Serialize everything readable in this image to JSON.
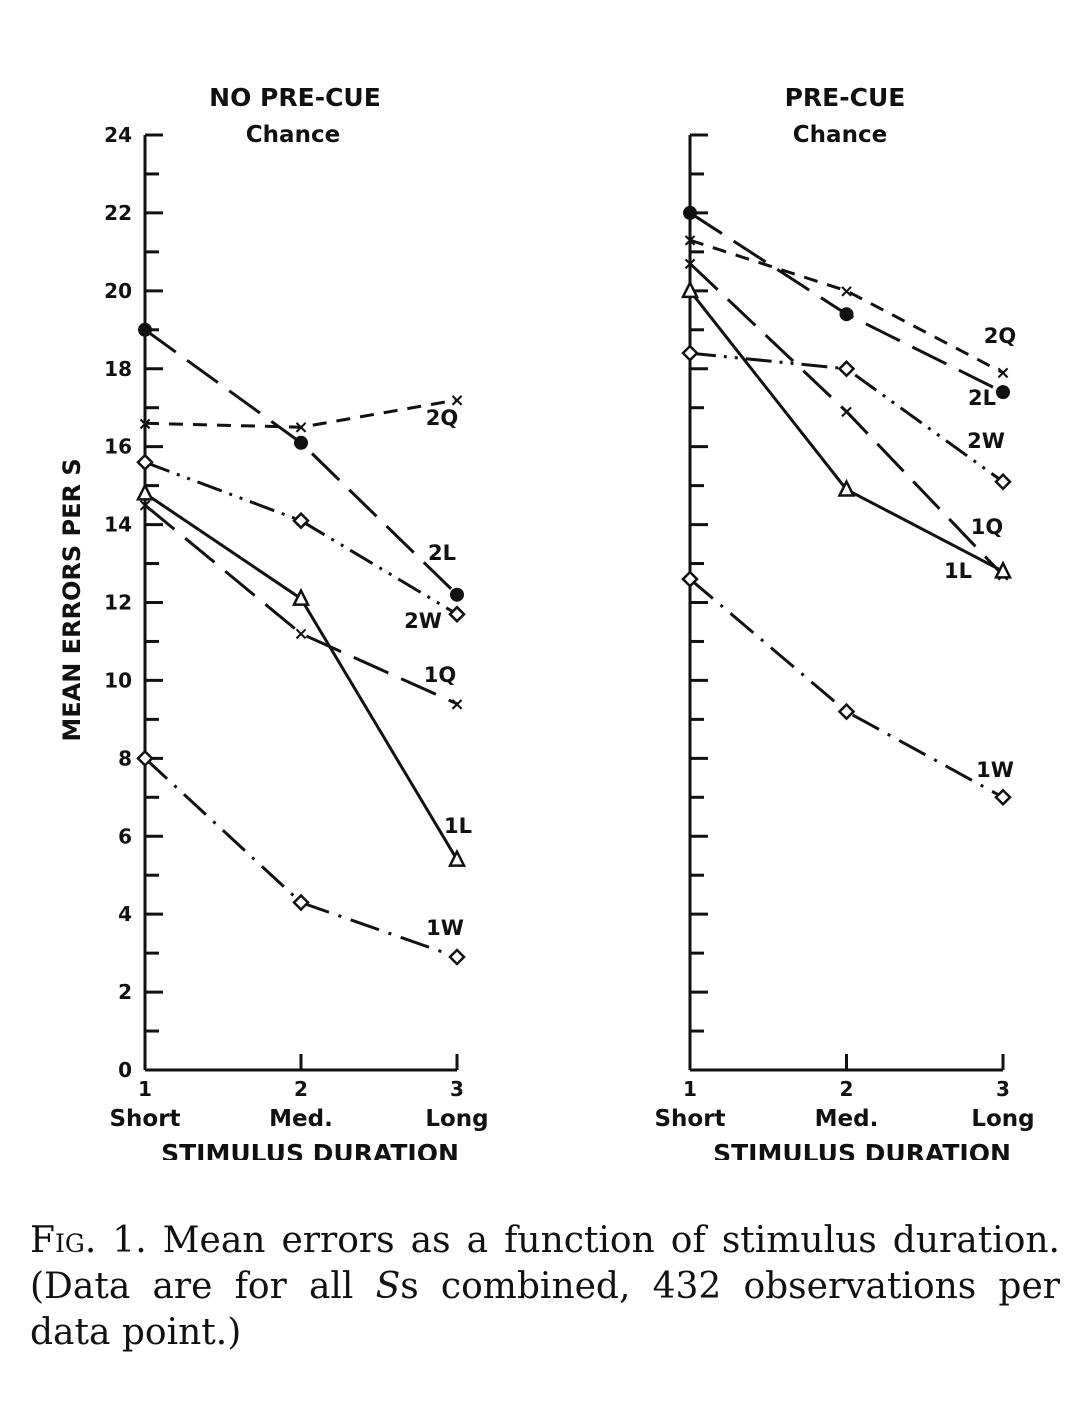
{
  "chart_data": [
    {
      "type": "line",
      "title": "NO PRE-CUE",
      "subtitle": "Chance",
      "xlabel": "STIMULUS DURATION",
      "ylabel": "MEAN ERRORS PER S",
      "x": [
        1,
        2,
        3
      ],
      "categories": [
        "Short",
        "Med.",
        "Long"
      ],
      "ylim": [
        0,
        24
      ],
      "yticks": [
        0,
        2,
        4,
        6,
        8,
        10,
        12,
        14,
        16,
        18,
        20,
        22,
        24
      ],
      "grid": false,
      "series": [
        {
          "name": "2Q",
          "marker": "x",
          "dash": "short-dash",
          "values": [
            16.6,
            16.5,
            17.2
          ]
        },
        {
          "name": "2L",
          "marker": "filled-circle",
          "dash": "long-dash",
          "values": [
            19.0,
            16.1,
            12.2
          ]
        },
        {
          "name": "2W",
          "marker": "diamond",
          "dash": "dash-dot-dot",
          "values": [
            15.6,
            14.1,
            11.7
          ]
        },
        {
          "name": "1Q",
          "marker": "x",
          "dash": "long-dash",
          "values": [
            14.5,
            11.2,
            9.4
          ]
        },
        {
          "name": "1L",
          "marker": "triangle",
          "dash": "solid",
          "values": [
            14.8,
            12.1,
            5.4
          ]
        },
        {
          "name": "1W",
          "marker": "diamond",
          "dash": "dash-dot",
          "values": [
            8.0,
            4.3,
            2.9
          ]
        }
      ]
    },
    {
      "type": "line",
      "title": "PRE-CUE",
      "subtitle": "Chance",
      "xlabel": "STIMULUS DURATION",
      "ylabel": "",
      "x": [
        1,
        2,
        3
      ],
      "categories": [
        "Short",
        "Med.",
        "Long"
      ],
      "ylim": [
        0,
        24
      ],
      "yticks": [
        0,
        2,
        4,
        6,
        8,
        10,
        12,
        14,
        16,
        18,
        20,
        22,
        24
      ],
      "grid": false,
      "series": [
        {
          "name": "2Q",
          "marker": "x",
          "dash": "short-dash",
          "values": [
            21.3,
            20.0,
            17.9
          ]
        },
        {
          "name": "2L",
          "marker": "filled-circle",
          "dash": "long-dash",
          "values": [
            22.0,
            19.4,
            17.4
          ]
        },
        {
          "name": "2W",
          "marker": "diamond",
          "dash": "dash-dot-dot",
          "values": [
            18.4,
            18.0,
            15.1
          ]
        },
        {
          "name": "1Q",
          "marker": "x",
          "dash": "long-dash",
          "values": [
            20.7,
            16.9,
            12.7
          ]
        },
        {
          "name": "1L",
          "marker": "triangle",
          "dash": "solid",
          "values": [
            20.0,
            14.9,
            12.8
          ]
        },
        {
          "name": "1W",
          "marker": "diamond",
          "dash": "dash-dot",
          "values": [
            12.6,
            9.2,
            7.0
          ]
        }
      ]
    }
  ],
  "caption": {
    "fig_label": "Fig. 1.",
    "text": " Mean errors as a function of stimulus duration.  (Data are for all ",
    "italic": "S",
    "text2": "s combined, 432 observations per data point.)"
  }
}
